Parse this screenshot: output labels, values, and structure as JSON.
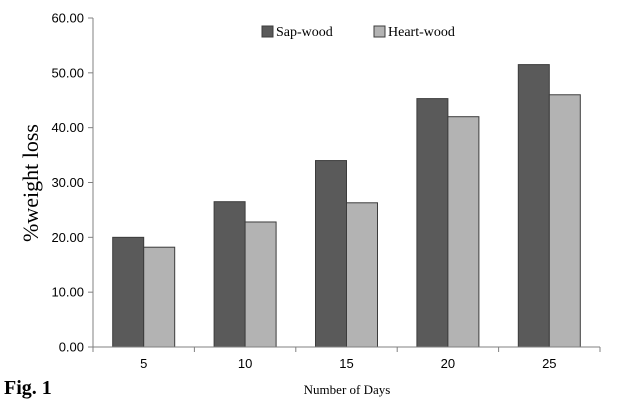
{
  "figure_label": "Fig. 1",
  "chart_data": {
    "type": "bar",
    "categories": [
      "5",
      "10",
      "15",
      "20",
      "25"
    ],
    "series": [
      {
        "name": "Sap-wood",
        "values": [
          20.0,
          26.5,
          34.0,
          45.3,
          51.5
        ],
        "color": "#5a5a5a"
      },
      {
        "name": "Heart-wood",
        "values": [
          18.2,
          22.8,
          26.3,
          42.0,
          46.0
        ],
        "color": "#b3b3b3"
      }
    ],
    "xlabel": "Number of Days",
    "ylabel": "%weight loss",
    "ylim": [
      0,
      60
    ],
    "yticks": [
      "0.00",
      "10.00",
      "20.00",
      "30.00",
      "40.00",
      "50.00",
      "60.00"
    ],
    "grid": false,
    "legend": "top-center"
  }
}
